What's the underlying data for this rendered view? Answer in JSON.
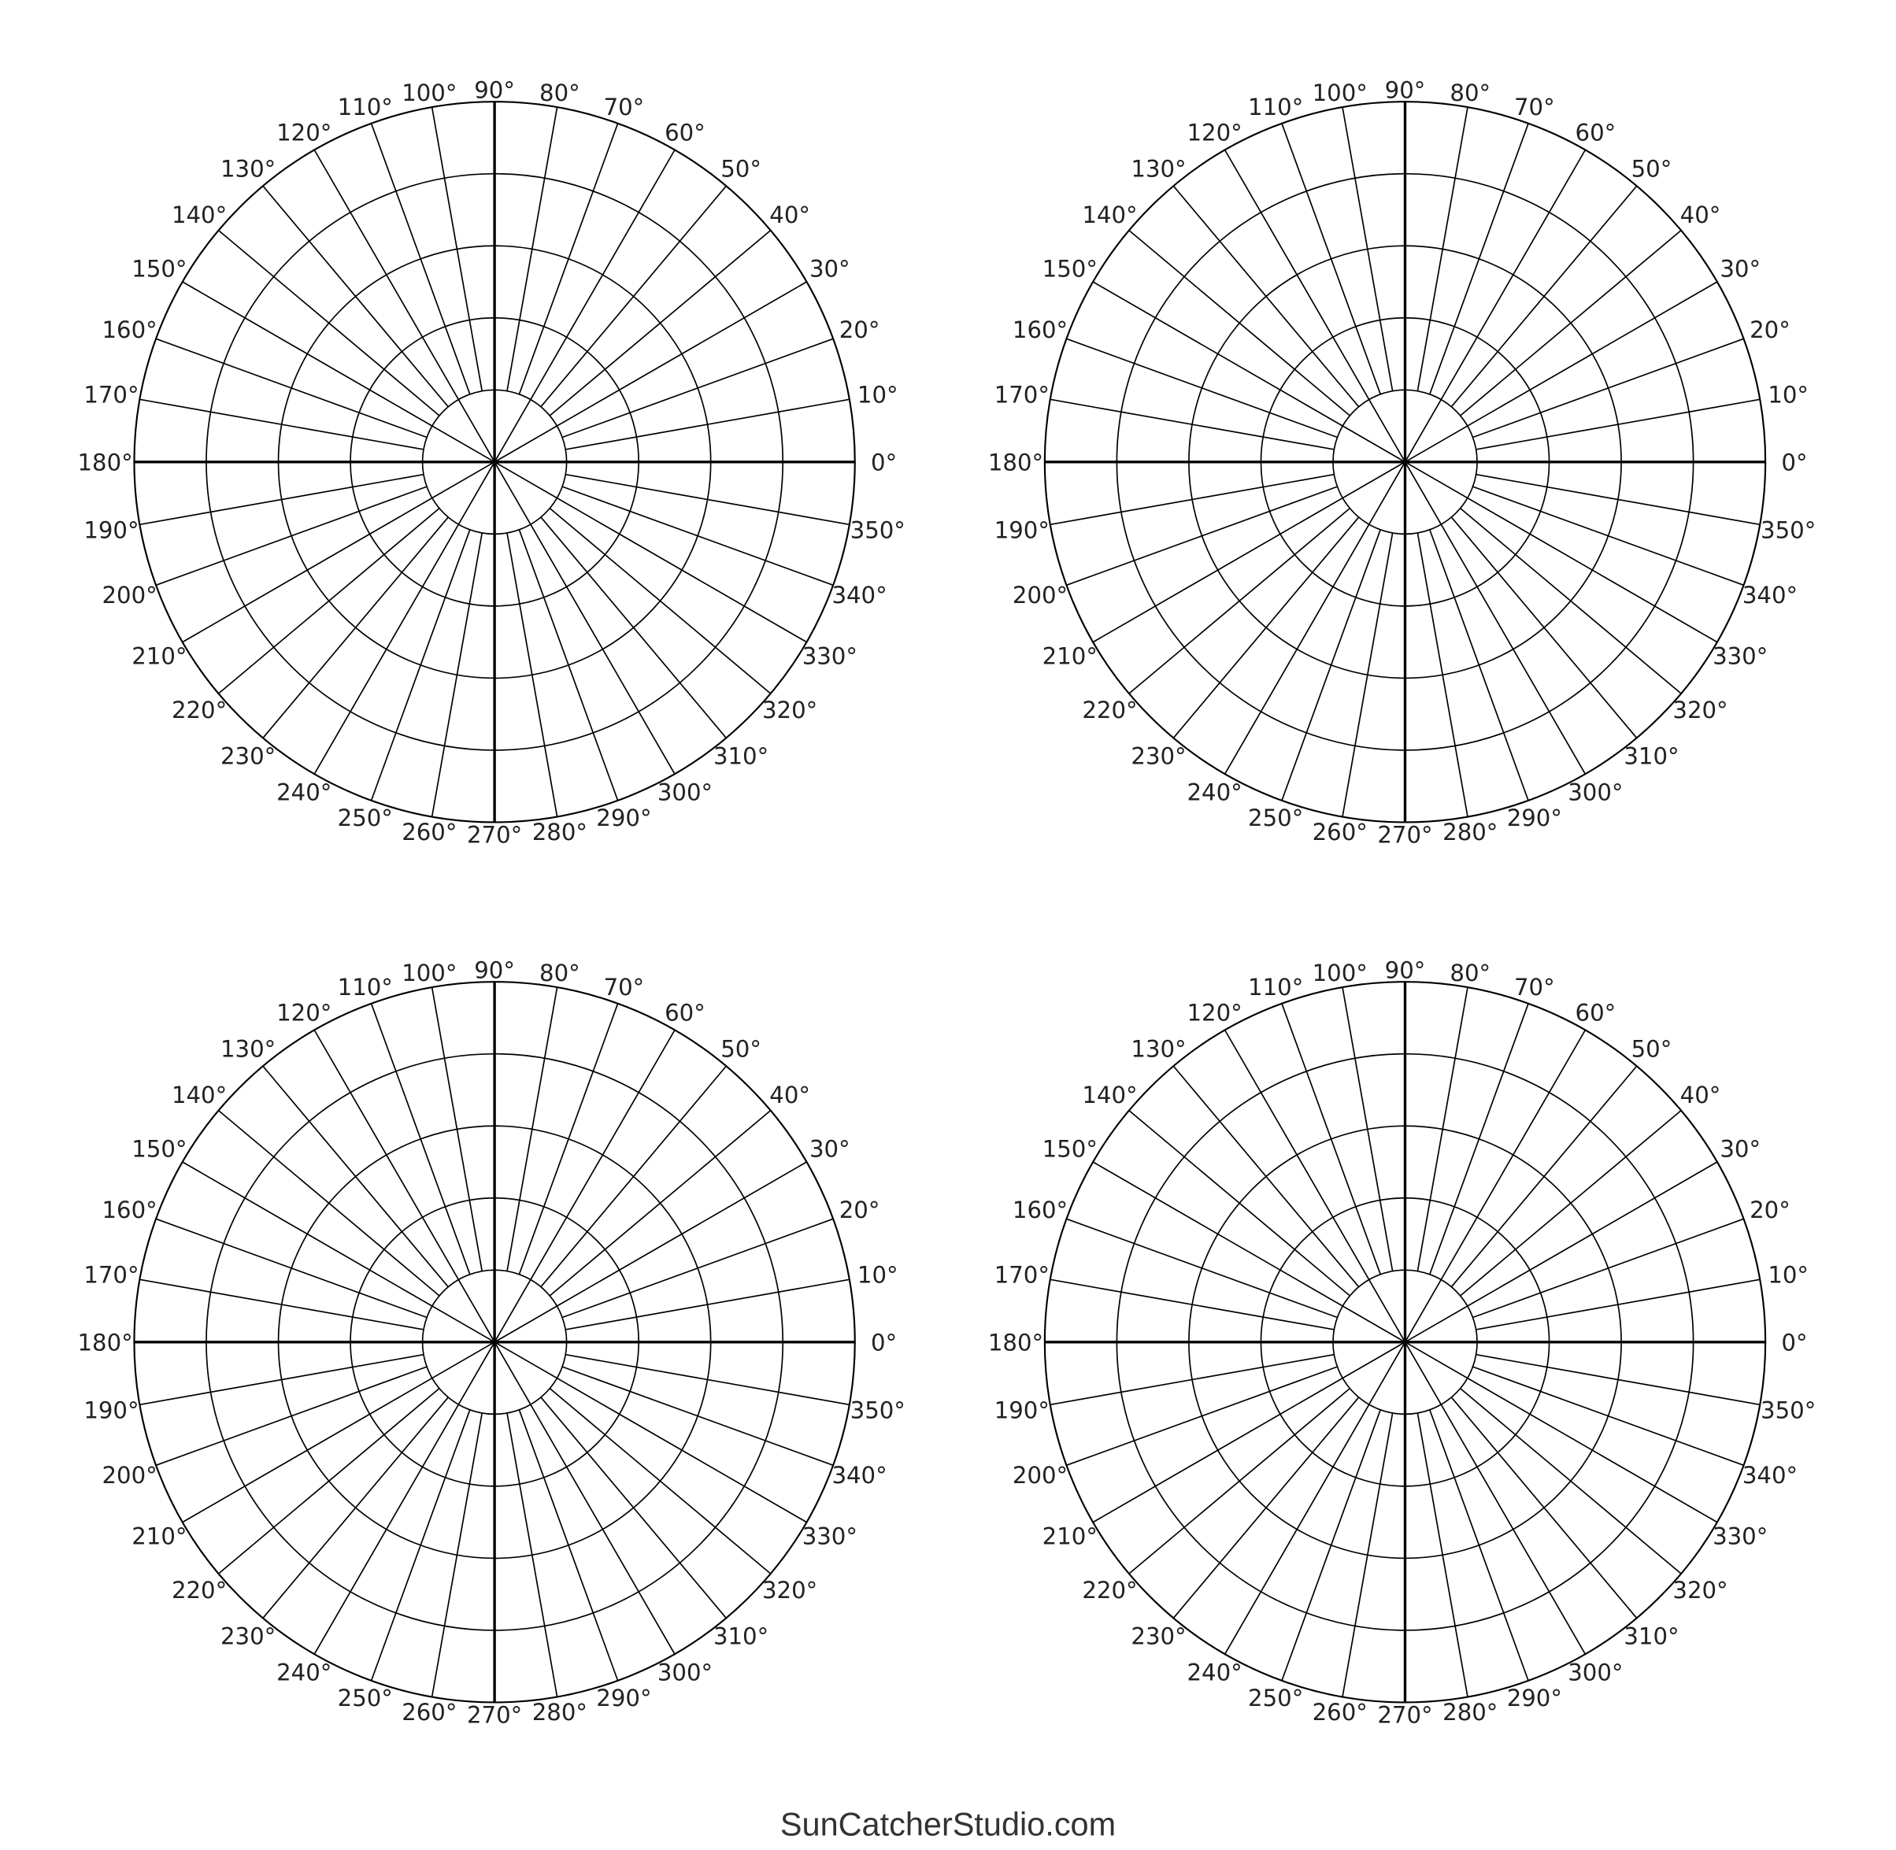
{
  "chart_data": {
    "type": "polar-grid",
    "grid_count": 4,
    "rings": 5,
    "angle_step_deg": 10,
    "spokes_to_center_every_deg": 30,
    "angle_labels": [
      "0°",
      "10°",
      "20°",
      "30°",
      "40°",
      "50°",
      "60°",
      "70°",
      "80°",
      "90°",
      "100°",
      "110°",
      "120°",
      "130°",
      "140°",
      "150°",
      "160°",
      "170°",
      "180°",
      "190°",
      "200°",
      "210°",
      "220°",
      "230°",
      "240°",
      "250°",
      "260°",
      "270°",
      "280°",
      "290°",
      "300°",
      "310°",
      "320°",
      "330°",
      "340°",
      "350°"
    ],
    "line_color": "#000000"
  },
  "footer": {
    "text": "SunCatcherStudio.com"
  }
}
